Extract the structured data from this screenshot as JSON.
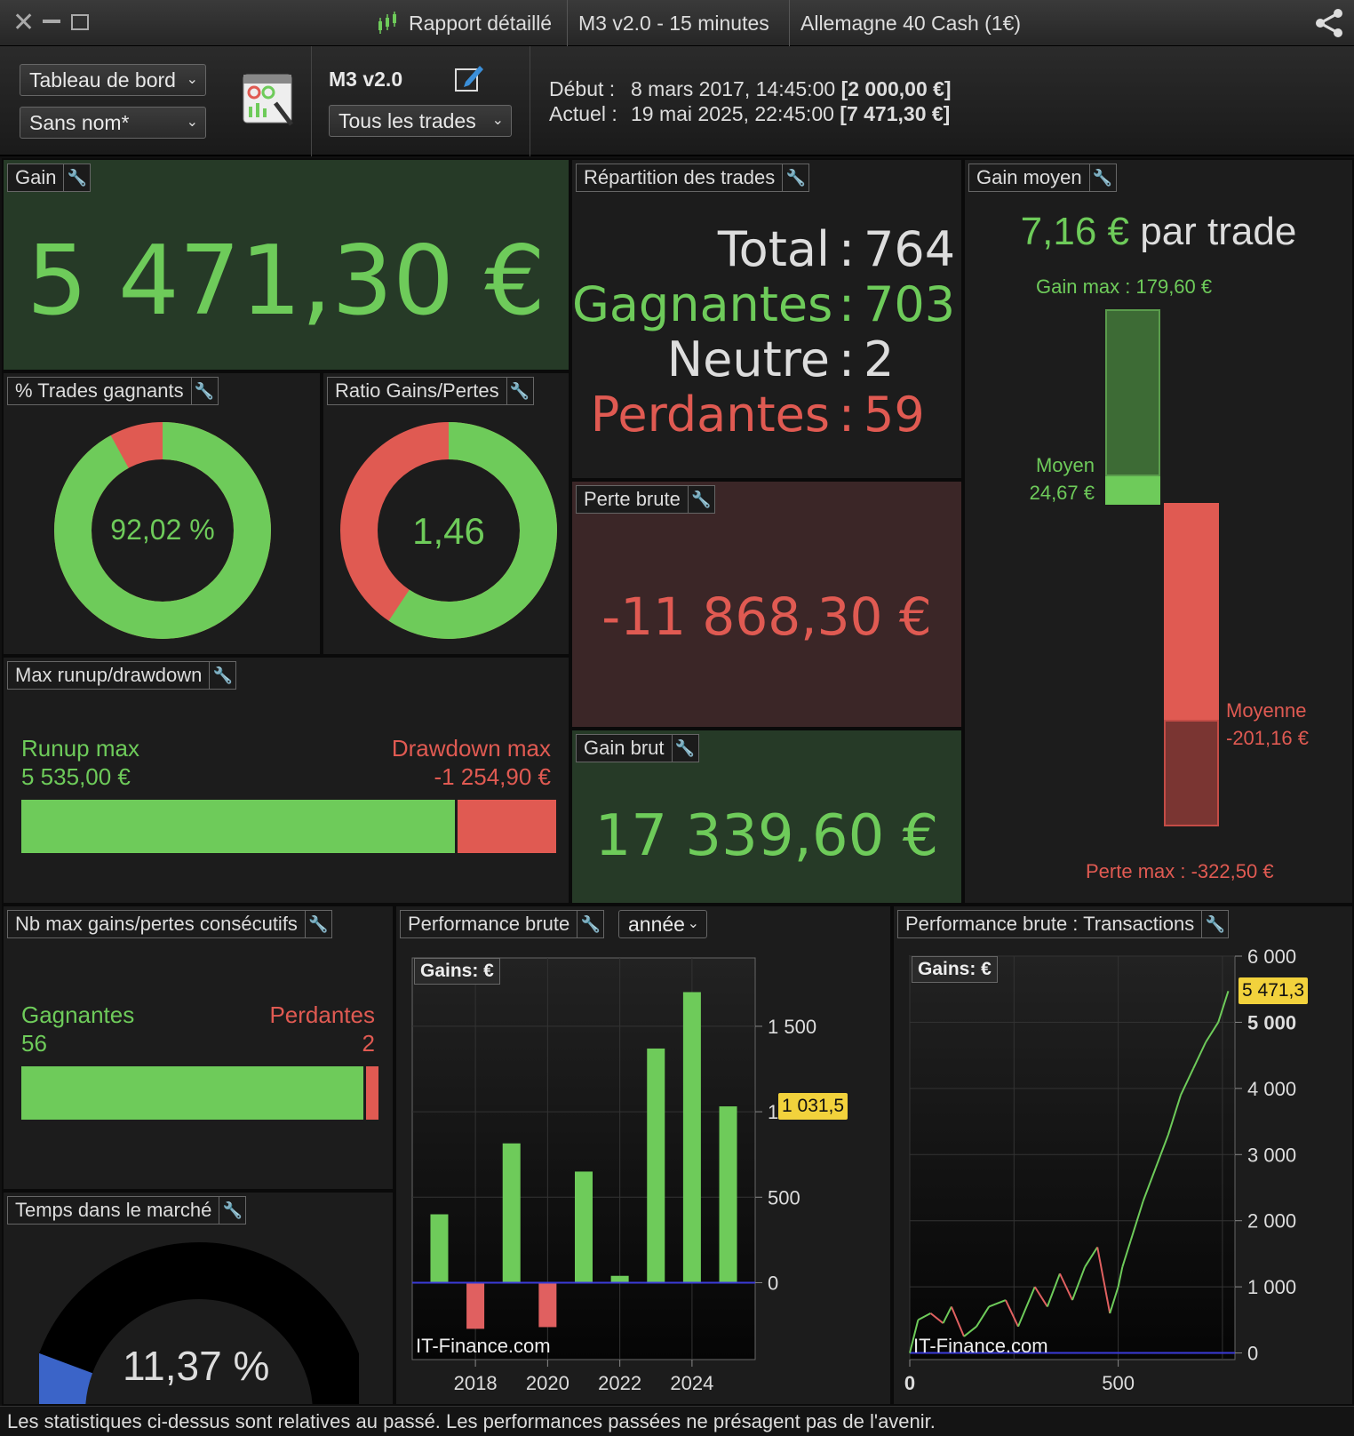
{
  "titlebar": {
    "report_label": "Rapport détaillé",
    "strategy": "M3 v2.0 - 15 minutes",
    "instrument": "Allemagne 40 Cash (1€)"
  },
  "toolbar": {
    "dashboard_select": "Tableau de bord",
    "name_select": "Sans nom*",
    "strategy_name": "M3 v2.0",
    "trades_select": "Tous les trades",
    "start_label": "Début :",
    "start_date": "8 mars 2017, 14:45:00",
    "start_value": "[2 000,00 €]",
    "current_label": "Actuel :",
    "current_date": "19 mai 2025, 22:45:00",
    "current_value": "[7 471,30 €]"
  },
  "gain": {
    "title": "Gain",
    "value": "5 471,30 €"
  },
  "win_pct": {
    "title": "% Trades gagnants",
    "value": "92,02 %",
    "fraction": 0.9202
  },
  "ratio": {
    "title": "Ratio Gains/Pertes",
    "value": "1,46",
    "fraction": 0.593
  },
  "distribution": {
    "title": "Répartition des trades",
    "total_label": "Total",
    "total": "764",
    "winners_label": "Gagnantes",
    "winners": "703",
    "neutral_label": "Neutre",
    "neutral": "2",
    "losers_label": "Perdantes",
    "losers": "59",
    "sep": ":"
  },
  "avg_gain": {
    "title": "Gain moyen",
    "value": "7,16 €",
    "suffix": "par trade",
    "max_gain_label": "Gain max : 179,60 €",
    "avg_label": "Moyen",
    "avg_value": "24,67 €",
    "avg_loss_label": "Moyenne",
    "avg_loss_value": "-201,16 €",
    "max_loss_label": "Perte max : -322,50 €"
  },
  "gross_loss": {
    "title": "Perte brute",
    "value": "-11 868,30 €"
  },
  "gross_gain": {
    "title": "Gain brut",
    "value": "17 339,60 €"
  },
  "runup": {
    "title": "Max runup/drawdown",
    "runup_label": "Runup max",
    "runup_value": "5 535,00 €",
    "runup_fraction": 0.815,
    "drawdown_label": "Drawdown max",
    "drawdown_value": "-1 254,90 €"
  },
  "consecutive": {
    "title": "Nb max gains/pertes consécutifs",
    "win_label": "Gagnantes",
    "win_value": "56",
    "win_fraction": 0.966,
    "loss_label": "Perdantes",
    "loss_value": "2"
  },
  "time_in_market": {
    "title": "Temps dans le marché",
    "value": "11,37 %",
    "fraction": 0.1137
  },
  "perf_year": {
    "title": "Performance brute",
    "period_select": "année",
    "badge": "Gains: €",
    "watermark": "IT-Finance.com",
    "last_value_label": "1 031,5",
    "y_ticks": [
      "1 500",
      "1 000",
      "500",
      "0"
    ],
    "x_ticks": [
      "2018",
      "2020",
      "2022",
      "2024"
    ]
  },
  "perf_tx": {
    "title": "Performance brute : Transactions",
    "badge": "Gains: €",
    "watermark": "IT-Finance.com",
    "last_value_label": "5 471,3",
    "y_ticks": [
      "6 000",
      "5 000",
      "4 000",
      "3 000",
      "2 000",
      "1 000",
      "0"
    ],
    "x_ticks": [
      "0",
      "500"
    ]
  },
  "chart_data": [
    {
      "type": "bar",
      "title": "Performance brute",
      "categories": [
        "2017",
        "2018",
        "2019",
        "2020",
        "2021",
        "2022",
        "2023",
        "2024",
        "2025"
      ],
      "values": [
        400,
        -270,
        815,
        -260,
        650,
        40,
        1370,
        1700,
        1031.5
      ],
      "ylim": [
        -450,
        1900
      ],
      "colors": {
        "positive": "#6ecb5a",
        "negative": "#e06060"
      }
    },
    {
      "type": "line",
      "title": "Performance brute : Transactions",
      "x": [
        0,
        20,
        50,
        80,
        100,
        130,
        160,
        190,
        230,
        260,
        300,
        330,
        360,
        390,
        420,
        450,
        480,
        500,
        510,
        530,
        560,
        590,
        620,
        650,
        680,
        710,
        740,
        764
      ],
      "values": [
        0,
        500,
        600,
        450,
        700,
        250,
        400,
        700,
        800,
        400,
        1000,
        700,
        1200,
        800,
        1300,
        1600,
        600,
        1000,
        1300,
        1700,
        2300,
        2800,
        3300,
        3900,
        4300,
        4700,
        5000,
        5471.3
      ],
      "ylim": [
        -100,
        6000
      ],
      "xlim": [
        0,
        780
      ]
    }
  ],
  "footer": "Les statistiques ci-dessus sont relatives au passé. Les performances passées ne présagent pas de l'avenir."
}
